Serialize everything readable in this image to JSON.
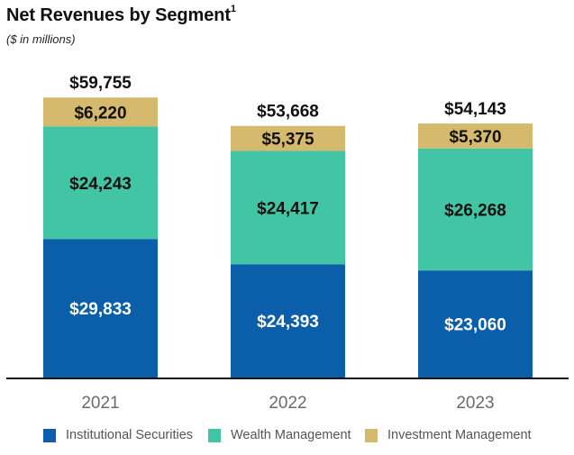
{
  "chart_data": {
    "type": "bar",
    "stacked": true,
    "title": "Net Revenues by Segment",
    "title_footnote": "1",
    "subtitle": "($ in millions)",
    "xlabel": "",
    "ylabel": "",
    "categories": [
      "2021",
      "2022",
      "2023"
    ],
    "series": [
      {
        "name": "Institutional Securities",
        "color": "#0b5ea9",
        "label_color": "#ffffff",
        "values": [
          29833,
          24393,
          23060
        ],
        "labels": [
          "$29,833",
          "$24,393",
          "$23,060"
        ]
      },
      {
        "name": "Wealth Management",
        "color": "#41c5a5",
        "label_color": "#111111",
        "values": [
          24243,
          24417,
          26268
        ],
        "labels": [
          "$24,243",
          "$24,417",
          "$26,268"
        ]
      },
      {
        "name": "Investment Management",
        "color": "#d5b96d",
        "label_color": "#111111",
        "values": [
          6220,
          5375,
          5370
        ],
        "labels": [
          "$6,220",
          "$5,375",
          "$5,370"
        ]
      }
    ],
    "totals": [
      59755,
      53668,
      54143
    ],
    "total_labels": [
      "$59,755",
      "$53,668",
      "$54,143"
    ],
    "ylim": [
      0,
      81300
    ],
    "grid": false,
    "y_axis_visible": false,
    "legend_position": "bottom"
  }
}
